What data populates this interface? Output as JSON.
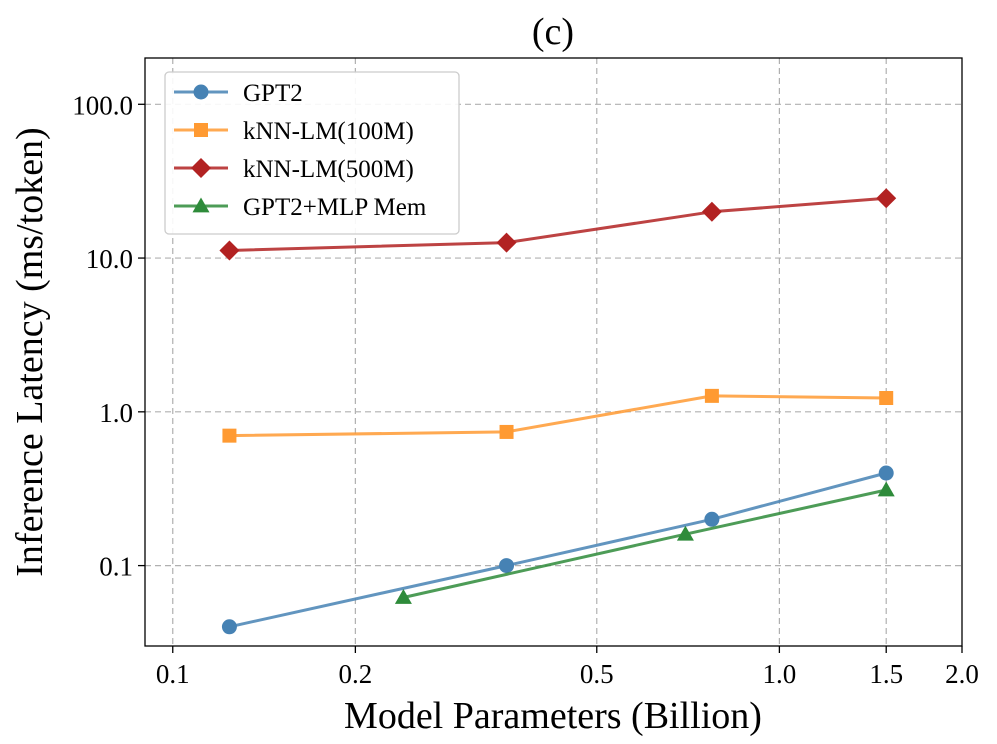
{
  "chart_data": {
    "type": "line",
    "title": "(c)",
    "xlabel": "Model Parameters (Billion)",
    "ylabel": "Inference Latency (ms/token)",
    "xscale": "log",
    "yscale": "log",
    "xlim": [
      0.09,
      2.0
    ],
    "ylim": [
      0.03,
      200
    ],
    "grid": true,
    "legend_position": "top-left",
    "x_ticks": [
      {
        "value": 0.1,
        "label": "0.1"
      },
      {
        "value": 0.2,
        "label": "0.2"
      },
      {
        "value": 0.5,
        "label": "0.5"
      },
      {
        "value": 1.0,
        "label": "1.0"
      },
      {
        "value": 1.5,
        "label": "1.5"
      },
      {
        "value": 2.0,
        "label": "2.0"
      }
    ],
    "y_ticks": [
      {
        "value": 0.1,
        "label": "0.1"
      },
      {
        "value": 1.0,
        "label": "1.0"
      },
      {
        "value": 10.0,
        "label": "10.0"
      },
      {
        "value": 100.0,
        "label": "100.0"
      }
    ],
    "series": [
      {
        "name": "GPT2",
        "color": "#4682b4",
        "marker": "circle",
        "x": [
          0.124,
          0.355,
          0.774,
          1.5
        ],
        "y": [
          0.04,
          0.1,
          0.2,
          0.4
        ]
      },
      {
        "name": "kNN-LM(100M)",
        "color": "#ff9a32",
        "marker": "square",
        "x": [
          0.124,
          0.355,
          0.774,
          1.5
        ],
        "y": [
          0.7,
          0.74,
          1.27,
          1.23
        ]
      },
      {
        "name": "kNN-LM(500M)",
        "color": "#b22222",
        "marker": "diamond",
        "x": [
          0.124,
          0.355,
          0.774,
          1.5
        ],
        "y": [
          11.2,
          12.6,
          20.0,
          24.5
        ]
      },
      {
        "name": "GPT2+MLP Mem",
        "color": "#2e8b3a",
        "marker": "triangle",
        "x": [
          0.24,
          0.7,
          1.5
        ],
        "y": [
          0.062,
          0.16,
          0.31
        ]
      }
    ]
  }
}
